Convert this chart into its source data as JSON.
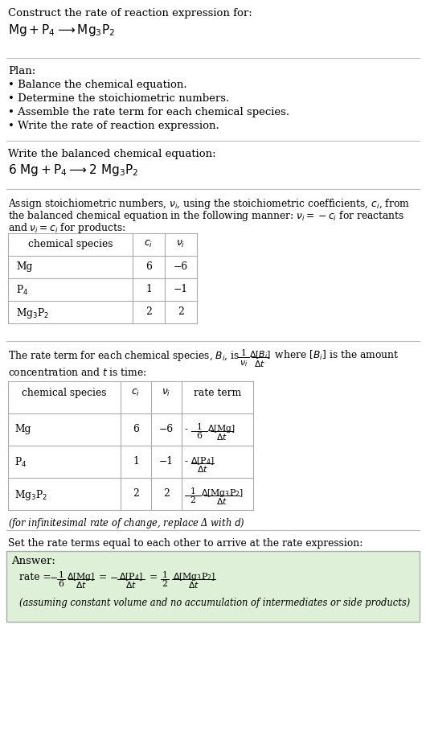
{
  "bg_color": "#ffffff",
  "text_color": "#000000",
  "title_line1": "Construct the rate of reaction expression for:",
  "plan_header": "Plan:",
  "plan_items": [
    "• Balance the chemical equation.",
    "• Determine the stoichiometric numbers.",
    "• Assemble the rate term for each chemical species.",
    "• Write the rate of reaction expression."
  ],
  "balanced_eq_label": "Write the balanced chemical equation:",
  "stoich_intro_line1": "Assign stoichiometric numbers, $\\nu_i$, using the stoichiometric coefficients, $c_i$, from",
  "stoich_intro_line2": "the balanced chemical equation in the following manner: $\\nu_i = -c_i$ for reactants",
  "stoich_intro_line3": "and $\\nu_i = c_i$ for products:",
  "table1_rows": [
    [
      "Mg",
      "6",
      "−6"
    ],
    [
      "P$_4$",
      "1",
      "−1"
    ],
    [
      "Mg$_3$P$_2$",
      "2",
      "2"
    ]
  ],
  "table2_rows": [
    [
      "Mg",
      "6",
      "−6"
    ],
    [
      "P$_4$",
      "1",
      "−1"
    ],
    [
      "Mg$_3$P$_2$",
      "2",
      "2"
    ]
  ],
  "infinitesimal_note": "(for infinitesimal rate of change, replace Δ with $d$)",
  "set_equal_text": "Set the rate terms equal to each other to arrive at the rate expression:",
  "answer_box_color": "#dff0d8",
  "answer_label": "Answer:",
  "answer_note": "(assuming constant volume and no accumulation of intermediates or side products)"
}
